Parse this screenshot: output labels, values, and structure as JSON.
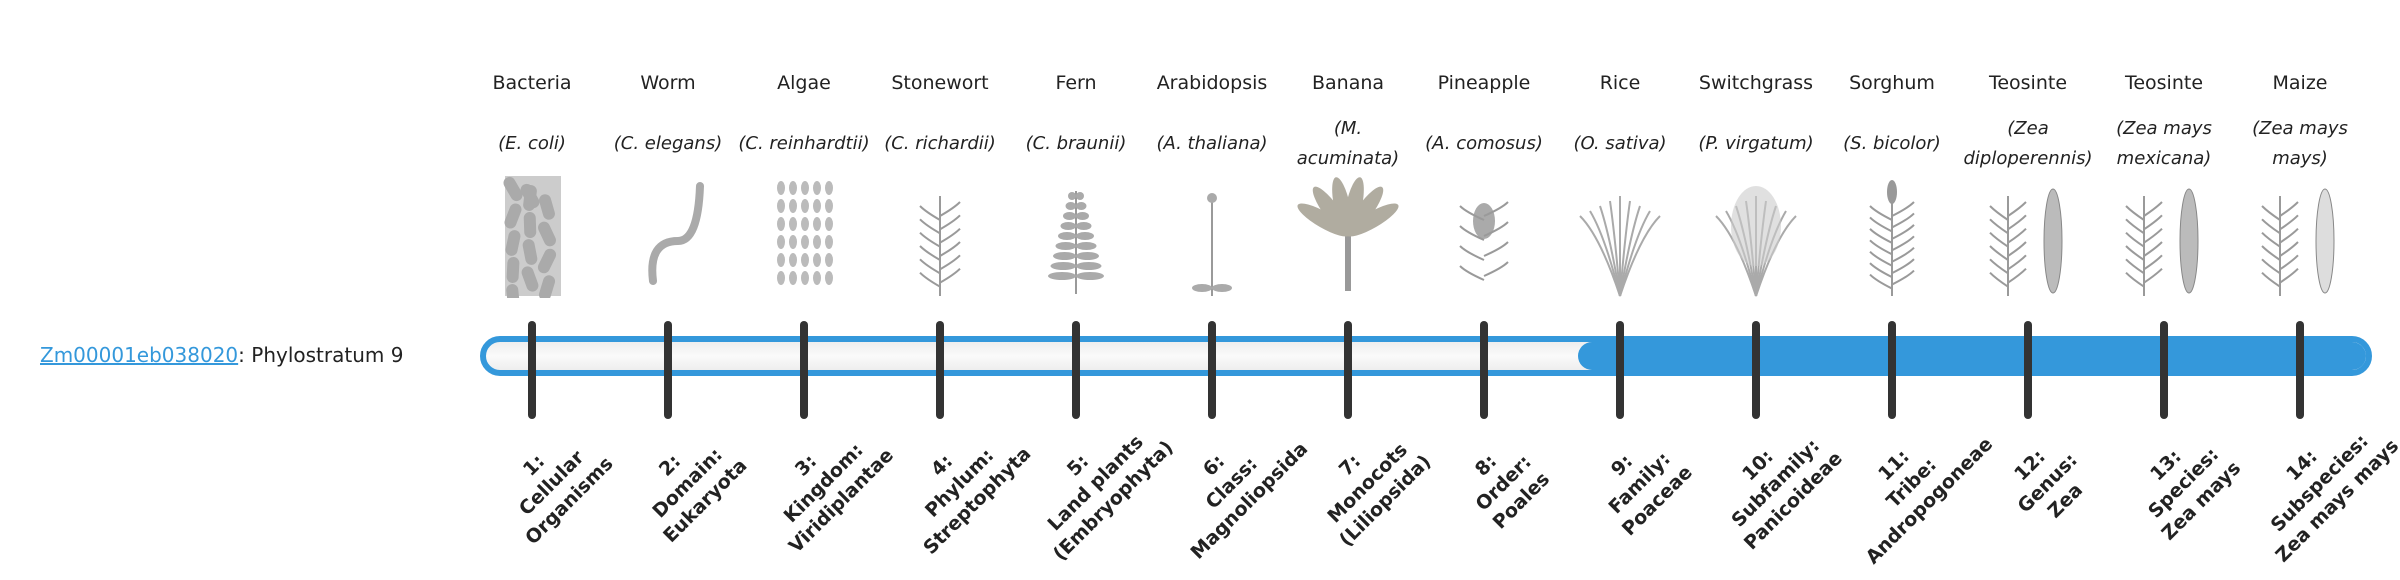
{
  "gene": {
    "id": "Zm00001eb038020",
    "suffix": ": Phylostratum 9"
  },
  "phylostratum": 9,
  "colors": {
    "accent": "#3498db",
    "tick": "#333333",
    "track": "#f5f5f5"
  },
  "strata": [
    {
      "common": "Bacteria",
      "sci": "(E. coli)",
      "icon": "bacteria-icon",
      "label": [
        "1:",
        "Cellular",
        "Organisms"
      ]
    },
    {
      "common": "Worm",
      "sci": "(C. elegans)",
      "icon": "worm-icon",
      "label": [
        "2:",
        "Domain:",
        "Eukaryota"
      ]
    },
    {
      "common": "Algae",
      "sci": "(C. reinhardtii)",
      "icon": "algae-icon",
      "label": [
        "3:",
        "Kingdom:",
        "Viridiplantae"
      ]
    },
    {
      "common": "Stonewort",
      "sci": "(C. richardii)",
      "icon": "stonewort-icon",
      "label": [
        "4:",
        "Phylum:",
        "Streptophyta"
      ]
    },
    {
      "common": "Fern",
      "sci": "(C. braunii)",
      "icon": "fern-icon",
      "label": [
        "5:",
        "Land plants",
        "(Embryophyta)"
      ]
    },
    {
      "common": "Arabidopsis",
      "sci": "(A. thaliana)",
      "icon": "arabidopsis-icon",
      "label": [
        "6:",
        "Class:",
        "Magnoliopsida"
      ]
    },
    {
      "common": "Banana",
      "sci": "(M. acuminata)",
      "icon": "banana-icon",
      "label": [
        "7:",
        "Monocots",
        "(Liliopsida)"
      ]
    },
    {
      "common": "Pineapple",
      "sci": "(A. comosus)",
      "icon": "pineapple-icon",
      "label": [
        "8:",
        "Order:",
        "Poales"
      ]
    },
    {
      "common": "Rice",
      "sci": "(O. sativa)",
      "icon": "rice-icon",
      "label": [
        "9:",
        "Family:",
        "Poaceae"
      ]
    },
    {
      "common": "Switchgrass",
      "sci": "(P. virgatum)",
      "icon": "switchgrass-icon",
      "label": [
        "10:",
        "Subfamily:",
        "Panicoideae"
      ]
    },
    {
      "common": "Sorghum",
      "sci": "(S. bicolor)",
      "icon": "sorghum-icon",
      "label": [
        "11:",
        "Tribe:",
        "Andropogoneae"
      ]
    },
    {
      "common": "Teosinte",
      "sci": "(Zea diploperennis)",
      "icon": "teosinte-icon",
      "label": [
        "12:",
        "Genus:",
        "Zea"
      ]
    },
    {
      "common": "Teosinte",
      "sci": "(Zea mays mexicana)",
      "icon": "teosinte-mexicana-icon",
      "label": [
        "13:",
        "Species:",
        "Zea mays"
      ]
    },
    {
      "common": "Maize",
      "sci": "(Zea mays mays)",
      "icon": "maize-icon",
      "label": [
        "14:",
        "Subspecies:",
        "Zea mays mays"
      ]
    }
  ]
}
